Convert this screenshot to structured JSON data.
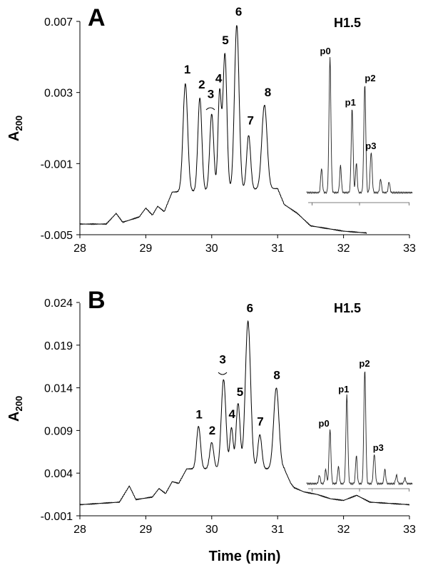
{
  "chart_data": [
    {
      "type": "line",
      "panel_label": "A",
      "xlabel": "",
      "ylabel": "A200",
      "xlim": [
        28,
        33
      ],
      "ylim": [
        -0.005,
        0.007
      ],
      "x_ticks": [
        "28",
        "29",
        "30",
        "31",
        "32",
        "33"
      ],
      "y_ticks": [
        "-0.005",
        "-0.001",
        "0.003",
        "0.007"
      ],
      "y_tick_values": [
        -0.005,
        -0.001,
        0.003,
        0.007
      ],
      "peaks": [
        {
          "label": "1",
          "x": 29.6,
          "y": 0.0035
        },
        {
          "label": "2",
          "x": 29.82,
          "y": 0.0027
        },
        {
          "label": "3",
          "x": 30.0,
          "y": 0.0018
        },
        {
          "label": "4",
          "x": 30.12,
          "y": 0.003
        },
        {
          "label": "5",
          "x": 30.2,
          "y": 0.0052
        },
        {
          "label": "6",
          "x": 30.38,
          "y": 0.0068
        },
        {
          "label": "7",
          "x": 30.56,
          "y": 0.0006
        },
        {
          "label": "8",
          "x": 30.8,
          "y": 0.0023
        }
      ],
      "baseline": [
        [
          28.0,
          -0.0044
        ],
        [
          28.4,
          -0.0044
        ],
        [
          28.55,
          -0.0038
        ],
        [
          28.65,
          -0.0043
        ],
        [
          28.9,
          -0.004
        ],
        [
          29.0,
          -0.0035
        ],
        [
          29.1,
          -0.0039
        ],
        [
          29.18,
          -0.0034
        ],
        [
          29.28,
          -0.0037
        ],
        [
          29.4,
          -0.0026
        ],
        [
          31.0,
          -0.0024
        ],
        [
          31.1,
          -0.0033
        ],
        [
          31.3,
          -0.0038
        ],
        [
          31.5,
          -0.0045
        ],
        [
          32.0,
          -0.0048
        ],
        [
          32.35,
          -0.0049
        ]
      ],
      "inset": {
        "title": "H1.5",
        "peaks": [
          {
            "label": "p0",
            "value": 1.0
          },
          {
            "label": "p1",
            "value": 0.62
          },
          {
            "label": "p2",
            "value": 0.8
          },
          {
            "label": "p3",
            "value": 0.3
          }
        ]
      }
    },
    {
      "type": "line",
      "panel_label": "B",
      "xlabel": "Time (min)",
      "ylabel": "A200",
      "xlim": [
        28,
        33
      ],
      "ylim": [
        -0.001,
        0.024
      ],
      "x_ticks": [
        "28",
        "29",
        "30",
        "31",
        "32",
        "33"
      ],
      "y_ticks": [
        "-0.001",
        "0.004",
        "0.009",
        "0.014",
        "0.019",
        "0.024"
      ],
      "y_tick_values": [
        -0.001,
        0.004,
        0.009,
        0.014,
        0.019,
        0.024
      ],
      "peaks": [
        {
          "label": "1",
          "x": 29.8,
          "y": 0.0095
        },
        {
          "label": "2",
          "x": 30.0,
          "y": 0.0076
        },
        {
          "label": "3",
          "x": 30.18,
          "y": 0.015
        },
        {
          "label": "4",
          "x": 30.3,
          "y": 0.0093
        },
        {
          "label": "5",
          "x": 30.4,
          "y": 0.0122
        },
        {
          "label": "6",
          "x": 30.55,
          "y": 0.0218
        },
        {
          "label": "7",
          "x": 30.73,
          "y": 0.0085
        },
        {
          "label": "8",
          "x": 30.98,
          "y": 0.014
        }
      ],
      "baseline": [
        [
          28.0,
          0.0003
        ],
        [
          28.6,
          0.0006
        ],
        [
          28.75,
          0.0025
        ],
        [
          28.85,
          0.0009
        ],
        [
          29.1,
          0.0012
        ],
        [
          29.2,
          0.0022
        ],
        [
          29.3,
          0.0016
        ],
        [
          29.4,
          0.003
        ],
        [
          29.5,
          0.0028
        ],
        [
          29.62,
          0.0045
        ],
        [
          31.1,
          0.0045
        ],
        [
          31.2,
          0.0028
        ],
        [
          31.25,
          0.0023
        ],
        [
          31.4,
          0.0018
        ],
        [
          31.6,
          0.0015
        ],
        [
          31.8,
          0.001
        ],
        [
          32.0,
          0.0008
        ],
        [
          32.2,
          0.0014
        ],
        [
          32.4,
          0.0006
        ],
        [
          33.0,
          0.0003
        ]
      ],
      "inset": {
        "title": "H1.5",
        "peaks": [
          {
            "label": "p0",
            "value": 0.38
          },
          {
            "label": "p1",
            "value": 0.62
          },
          {
            "label": "p2",
            "value": 0.8
          },
          {
            "label": "p3",
            "value": 0.21
          }
        ]
      }
    }
  ]
}
